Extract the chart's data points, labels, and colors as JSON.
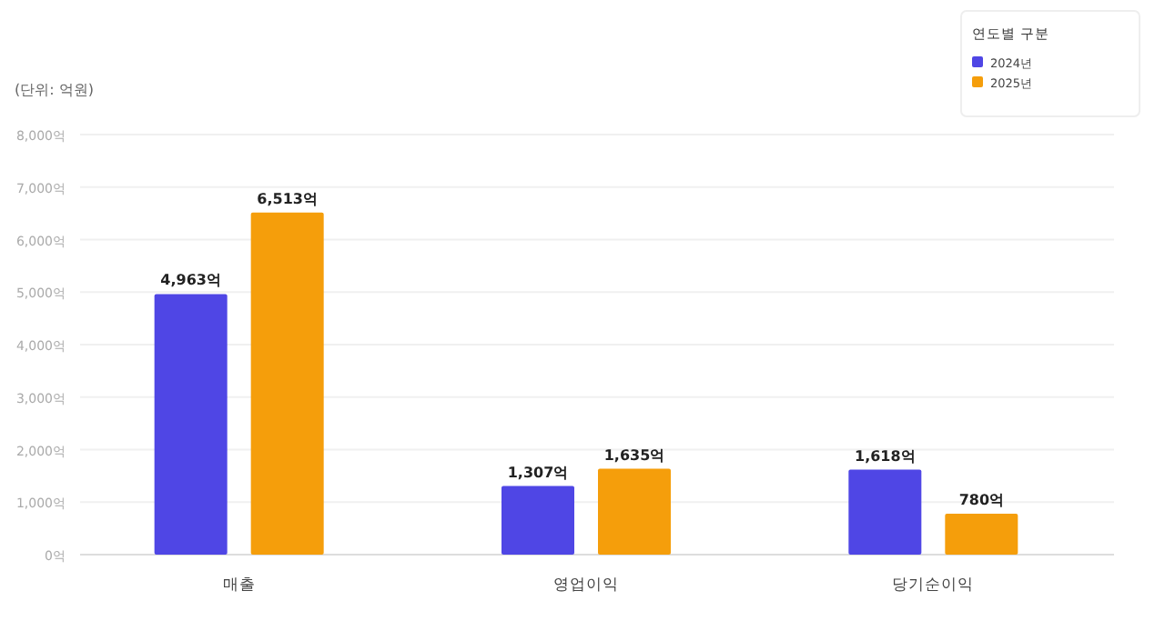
{
  "chart_data": {
    "type": "bar",
    "ylabel": "(단위: 억원)",
    "legend_title": "연도별 구분",
    "legend": "top right",
    "grid": "y",
    "categories": [
      "매출",
      "영업이익",
      "당기순이익"
    ],
    "series": [
      {
        "name": "2024년",
        "color": "#4f46e5",
        "values": [
          4963,
          1307,
          1618
        ],
        "value_labels": [
          "4,963억",
          "1,307억",
          "1,618억"
        ]
      },
      {
        "name": "2025년",
        "color": "#f59e0b",
        "values": [
          6513,
          1635,
          780
        ],
        "value_labels": [
          "6,513억",
          "1,635억",
          "780억"
        ]
      }
    ],
    "ylim": [
      0,
      8000
    ],
    "yticks": [
      {
        "value": 0,
        "label": "0억"
      },
      {
        "value": 1000,
        "label": "1,000억"
      },
      {
        "value": 2000,
        "label": "2,000억"
      },
      {
        "value": 3000,
        "label": "3,000억"
      },
      {
        "value": 4000,
        "label": "4,000억"
      },
      {
        "value": 5000,
        "label": "5,000억"
      },
      {
        "value": 6000,
        "label": "6,000억"
      },
      {
        "value": 7000,
        "label": "7,000억"
      },
      {
        "value": 8000,
        "label": "8,000억"
      }
    ]
  }
}
